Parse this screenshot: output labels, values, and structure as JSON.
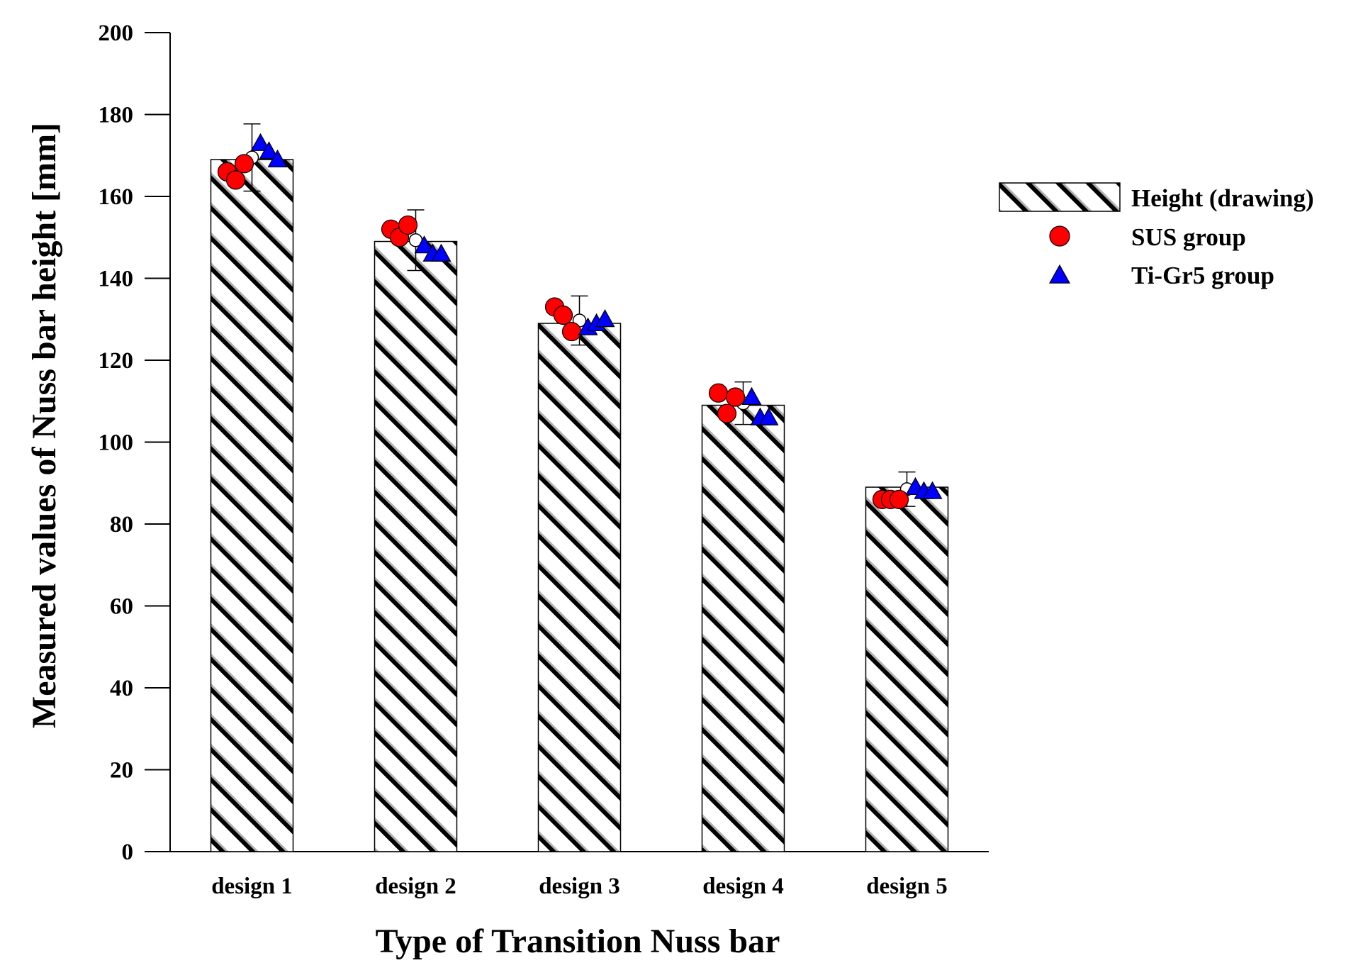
{
  "chart_data": {
    "type": "bar",
    "title": "",
    "xlabel": "Type of Transition Nuss bar",
    "ylabel": "Measured values of Nuss bar height [mm]",
    "categories": [
      "design 1",
      "design 2",
      "design 3",
      "design 4",
      "design 5"
    ],
    "ylim": [
      0,
      200
    ],
    "yticks": [
      "0",
      "20",
      "40",
      "60",
      "80",
      "100",
      "120",
      "140",
      "160",
      "180",
      "200"
    ],
    "grid": false,
    "legend_position": "right",
    "series": [
      {
        "name": "Height (drawing)",
        "kind": "bar",
        "pattern": "diagonal-hatch",
        "values": [
          169,
          149,
          129,
          109,
          89
        ]
      },
      {
        "name": "SUS group",
        "kind": "points",
        "marker": "circle",
        "color": "#ff0000",
        "points": [
          [
            166,
            164,
            168
          ],
          [
            152,
            150,
            153
          ],
          [
            133,
            131,
            127
          ],
          [
            112,
            107,
            111
          ],
          [
            86,
            86,
            86
          ]
        ]
      },
      {
        "name": "Ti-Gr5 group",
        "kind": "points",
        "marker": "triangle",
        "color": "#0000ff",
        "points": [
          [
            173,
            171,
            169
          ],
          [
            148,
            146,
            146
          ],
          [
            128,
            129,
            130
          ],
          [
            111,
            106,
            106
          ],
          [
            89,
            88,
            88
          ]
        ]
      }
    ],
    "mean_with_error": {
      "marker": "open-circle",
      "means": [
        169.5,
        149.3,
        129.7,
        109.5,
        88.5
      ],
      "errors": [
        8.2,
        7.4,
        6.0,
        5.2,
        4.2
      ]
    }
  }
}
